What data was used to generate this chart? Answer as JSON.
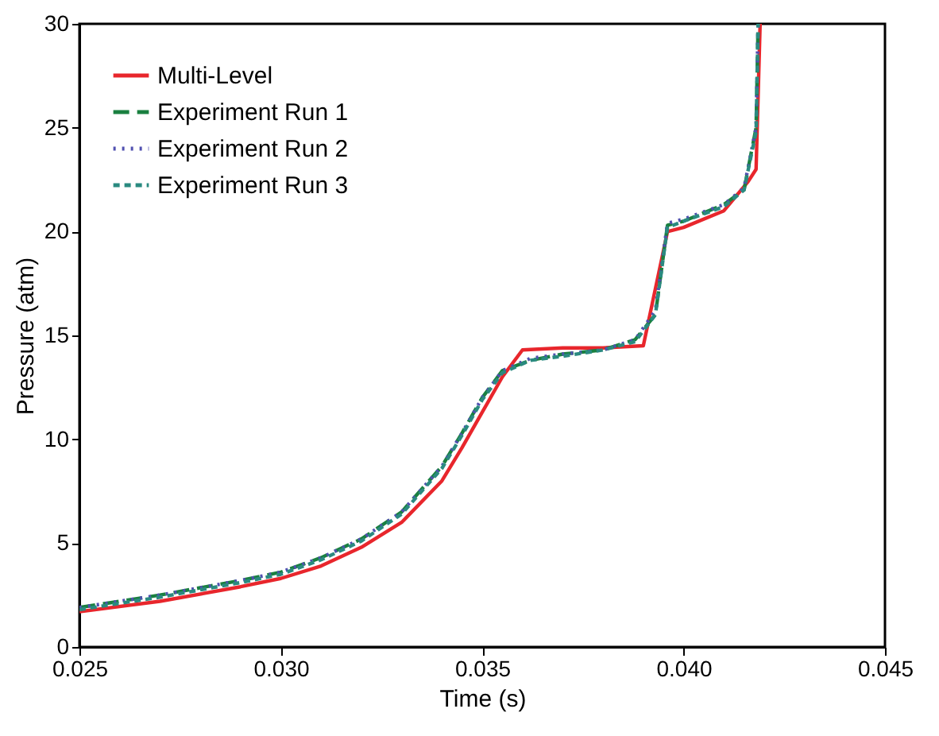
{
  "chart_data": {
    "type": "line",
    "xlabel": "Time (s)",
    "ylabel": "Pressure (atm)",
    "xlim": [
      0.025,
      0.045
    ],
    "ylim": [
      0,
      30
    ],
    "xticks": [
      {
        "value": 0.025,
        "label": "0.025"
      },
      {
        "value": 0.03,
        "label": "0.030"
      },
      {
        "value": 0.035,
        "label": "0.035"
      },
      {
        "value": 0.04,
        "label": "0.040"
      },
      {
        "value": 0.045,
        "label": "0.045"
      }
    ],
    "yticks": [
      0,
      5,
      10,
      15,
      20,
      25,
      30
    ],
    "grid": false,
    "legend": "top left",
    "series": [
      {
        "name": "Multi-Level",
        "color": "#e8262c",
        "line_style": "solid",
        "x": [
          0.025,
          0.027,
          0.029,
          0.03,
          0.031,
          0.032,
          0.033,
          0.034,
          0.0345,
          0.035,
          0.0355,
          0.036,
          0.037,
          0.038,
          0.039,
          0.0396,
          0.04,
          0.041,
          0.0416,
          0.0418,
          0.0419
        ],
        "values": [
          1.7,
          2.2,
          2.9,
          3.3,
          3.9,
          4.8,
          6.0,
          8.0,
          9.6,
          11.3,
          13.0,
          14.3,
          14.4,
          14.4,
          14.5,
          20.0,
          20.2,
          21.0,
          22.4,
          23.0,
          30.0
        ]
      },
      {
        "name": "Experiment Run 1",
        "color": "#1a8040",
        "line_style": "dashed",
        "x": [
          0.025,
          0.027,
          0.029,
          0.03,
          0.031,
          0.032,
          0.033,
          0.034,
          0.0345,
          0.035,
          0.0355,
          0.0362,
          0.037,
          0.038,
          0.0388,
          0.0393,
          0.0396,
          0.04,
          0.041,
          0.0415,
          0.0418,
          0.04185
        ],
        "values": [
          1.9,
          2.5,
          3.2,
          3.6,
          4.3,
          5.2,
          6.5,
          8.7,
          10.3,
          12.0,
          13.3,
          13.8,
          14.1,
          14.3,
          14.8,
          16.0,
          20.3,
          20.5,
          21.3,
          22.0,
          25.0,
          30.0
        ]
      },
      {
        "name": "Experiment Run 2",
        "color": "#5050b0",
        "line_style": "dotted",
        "x": [
          0.025,
          0.027,
          0.029,
          0.03,
          0.031,
          0.032,
          0.033,
          0.034,
          0.0345,
          0.035,
          0.0355,
          0.0362,
          0.037,
          0.038,
          0.0388,
          0.0393,
          0.0396,
          0.04,
          0.041,
          0.0415,
          0.0418,
          0.04185
        ],
        "values": [
          1.9,
          2.5,
          3.2,
          3.6,
          4.3,
          5.2,
          6.5,
          8.7,
          10.3,
          12.0,
          13.3,
          13.9,
          14.1,
          14.3,
          14.8,
          16.2,
          20.4,
          20.6,
          21.3,
          22.1,
          25.0,
          30.0
        ]
      },
      {
        "name": "Experiment Run 3",
        "color": "#2a8a80",
        "line_style": "dashed",
        "x": [
          0.025,
          0.027,
          0.029,
          0.03,
          0.031,
          0.032,
          0.033,
          0.034,
          0.0345,
          0.035,
          0.0355,
          0.0362,
          0.037,
          0.038,
          0.0388,
          0.0393,
          0.0396,
          0.04,
          0.041,
          0.0415,
          0.0418,
          0.04185
        ],
        "values": [
          1.8,
          2.4,
          3.1,
          3.5,
          4.2,
          5.1,
          6.4,
          8.6,
          10.2,
          11.9,
          13.2,
          13.8,
          14.0,
          14.3,
          14.7,
          16.0,
          20.2,
          20.5,
          21.2,
          22.0,
          24.8,
          30.0
        ]
      }
    ]
  }
}
